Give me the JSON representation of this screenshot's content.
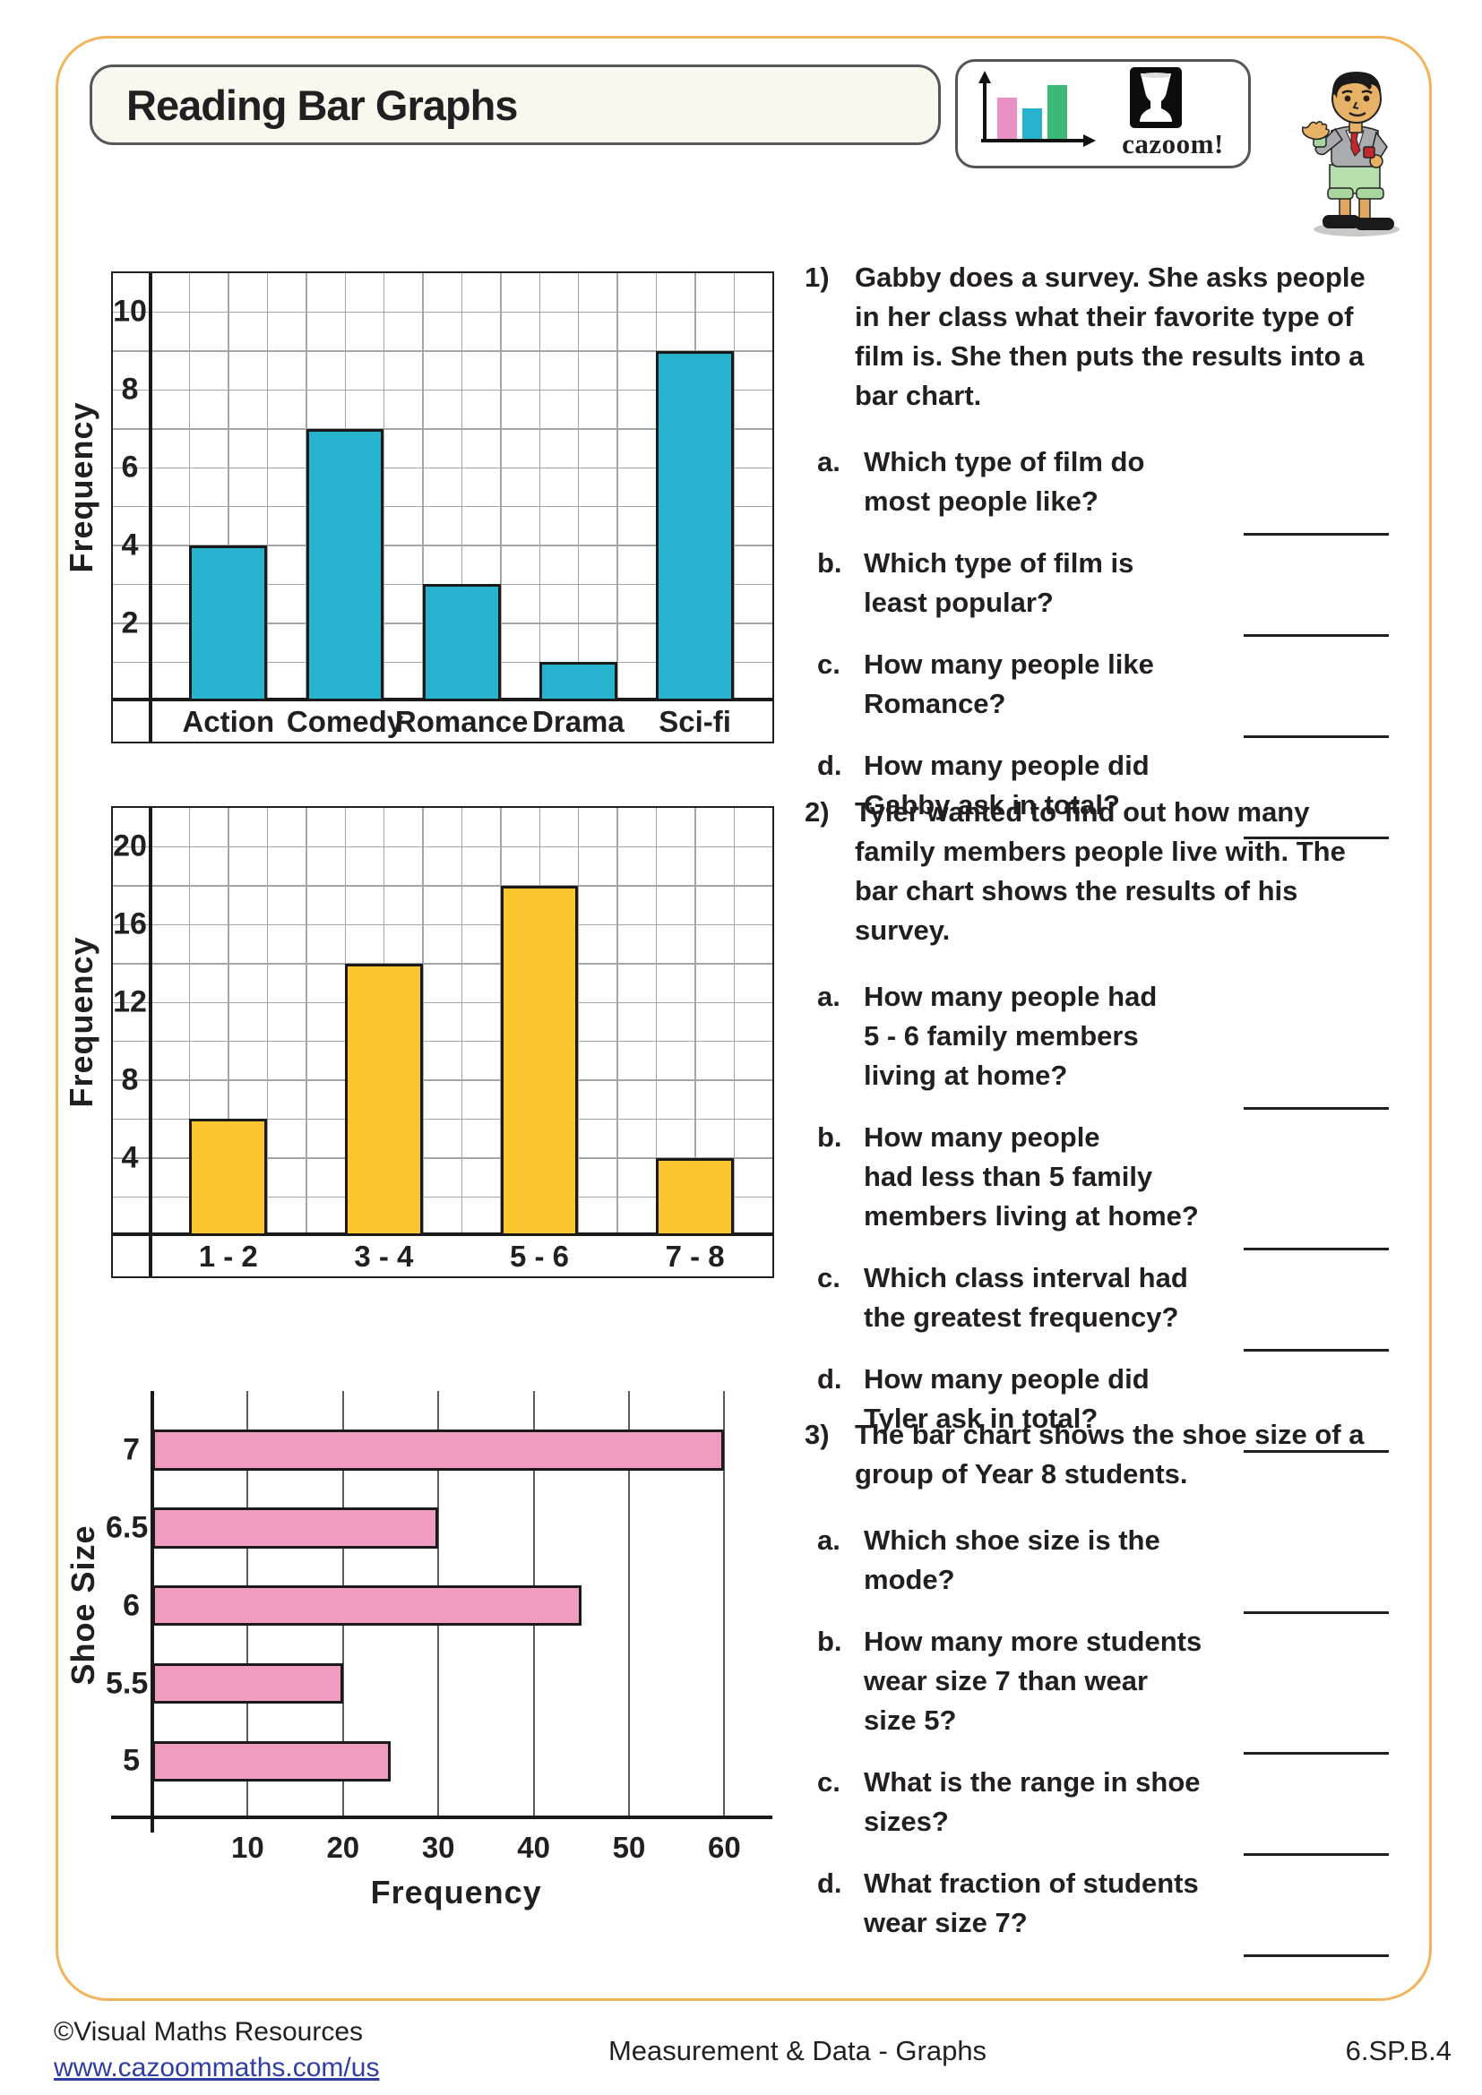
{
  "colors": {
    "page_border": "#F1B45C",
    "box_border": "#55565A",
    "ink": "#231F20",
    "axis_black": "#1A1A1A",
    "grid_gray": "#A3A5A8",
    "grid_dark": "#5B5C5E",
    "link_blue": "#2F3EA0",
    "bar_cyan": "#27B2CE",
    "bar_yellow": "#FBC52D",
    "bar_pink": "#F29BC1",
    "logo_pink": "#E991C4",
    "logo_green": "#3BB878"
  },
  "header": {
    "title": "Reading Bar Graphs",
    "logo_text": "cazoom!"
  },
  "questions": [
    {
      "number": "1)",
      "text": "Gabby does a survey. She asks people\nin her class what their favorite type of\nfilm is. She then puts the results into a\nbar chart.",
      "items": [
        {
          "letter": "a.",
          "text": "Which type of film do\nmost people like?"
        },
        {
          "letter": "b.",
          "text": "Which type of film is\nleast popular?"
        },
        {
          "letter": "c.",
          "text": "How many people like\nRomance?"
        },
        {
          "letter": "d.",
          "text": "How many people did\nGabby ask in total?"
        }
      ]
    },
    {
      "number": "2)",
      "text": "Tyler wanted to find out how many\nfamily members people live with. The\nbar chart shows the results of his\nsurvey.",
      "items": [
        {
          "letter": "a.",
          "text": "How many people had\n5 - 6 family members\nliving at home?"
        },
        {
          "letter": "b.",
          "text": "How many people\nhad less than 5 family\nmembers living at home?"
        },
        {
          "letter": "c.",
          "text": "Which class interval had\nthe greatest frequency?"
        },
        {
          "letter": "d.",
          "text": "How many people did\nTyler ask in total?"
        }
      ]
    },
    {
      "number": "3)",
      "text": "The bar chart shows the shoe size of a\ngroup of Year 8 students.",
      "items": [
        {
          "letter": "a.",
          "text": "Which shoe size is the\nmode?"
        },
        {
          "letter": "b.",
          "text": "How many more students\nwear size 7 than wear\nsize 5?"
        },
        {
          "letter": "c.",
          "text": "What is the range in shoe\nsizes?"
        },
        {
          "letter": "d.",
          "text": "What fraction of students\nwear size 7?"
        }
      ]
    }
  ],
  "chart_data": [
    {
      "type": "bar",
      "title": "",
      "xlabel": "",
      "ylabel": "Frequency",
      "categories": [
        "Action",
        "Comedy",
        "Romance",
        "Drama",
        "Sci-fi"
      ],
      "values": [
        4,
        7,
        3,
        1,
        9
      ],
      "ylim": [
        0,
        11
      ],
      "yticks": [
        2,
        4,
        6,
        8,
        10
      ],
      "gridline_step": 1,
      "grid": true,
      "bar_color": "#27B2CE"
    },
    {
      "type": "bar",
      "title": "",
      "xlabel": "",
      "ylabel": "Frequency",
      "categories": [
        "1 - 2",
        "3 - 4",
        "5 - 6",
        "7 - 8"
      ],
      "values": [
        6,
        14,
        18,
        4
      ],
      "ylim": [
        0,
        22
      ],
      "yticks": [
        4,
        8,
        12,
        16,
        20
      ],
      "gridline_step": 2,
      "grid": true,
      "bar_color": "#FBC52D"
    },
    {
      "type": "horizontal_bar",
      "title": "",
      "xlabel": "Frequency",
      "ylabel": "Shoe Size",
      "categories": [
        "7",
        "6.5",
        "6",
        "5.5",
        "5"
      ],
      "values": [
        60,
        30,
        45,
        20,
        25
      ],
      "xlim": [
        0,
        65
      ],
      "xticks": [
        10,
        20,
        30,
        40,
        50,
        60
      ],
      "gridline_step": 10,
      "grid": true,
      "bar_color": "#F29BC1"
    }
  ],
  "footer": {
    "copyright": "©Visual Maths Resources",
    "url": "www.cazoommaths.com/us",
    "center": "Measurement & Data - Graphs",
    "standard": "6.SP.B.4"
  }
}
